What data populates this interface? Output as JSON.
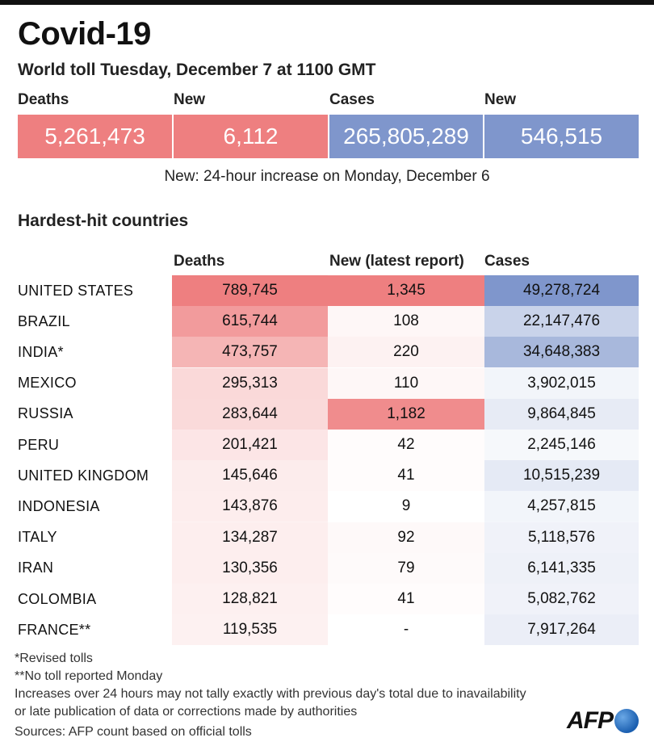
{
  "title": "Covid-19",
  "subtitle": "World toll Tuesday, December 7 at 1100 GMT",
  "summary": {
    "deaths_label": "Deaths",
    "deaths_value": "5,261,473",
    "new_deaths_label": "New",
    "new_deaths_value": "6,112",
    "cases_label": "Cases",
    "cases_value": "265,805,289",
    "new_cases_label": "New",
    "new_cases_value": "546,515"
  },
  "note": "New: 24-hour increase on Monday, December 6",
  "section_title": "Hardest-hit countries",
  "table": {
    "headers": {
      "deaths": "Deaths",
      "new": "New (latest report)",
      "cases": "Cases"
    },
    "rows": [
      {
        "country": "UNITED STATES",
        "deaths": "789,745",
        "new": "1,345",
        "cases": "49,278,724",
        "deaths_shade": 1.0,
        "new_shade": 1.0,
        "cases_shade": 1.0
      },
      {
        "country": "BRAZIL",
        "deaths": "615,744",
        "new": "108",
        "cases": "22,147,476",
        "deaths_shade": 0.78,
        "new_shade": 0.06,
        "cases_shade": 0.42
      },
      {
        "country": "INDIA*",
        "deaths": "473,757",
        "new": "220",
        "cases": "34,648,383",
        "deaths_shade": 0.58,
        "new_shade": 0.1,
        "cases_shade": 0.68
      },
      {
        "country": "MEXICO",
        "deaths": "295,313",
        "new": "110",
        "cases": "3,902,015",
        "deaths_shade": 0.3,
        "new_shade": 0.06,
        "cases_shade": 0.1
      },
      {
        "country": "RUSSIA",
        "deaths": "283,644",
        "new": "1,182",
        "cases": "9,864,845",
        "deaths_shade": 0.29,
        "new_shade": 0.9,
        "cases_shade": 0.19
      },
      {
        "country": "PERU",
        "deaths": "201,421",
        "new": "42",
        "cases": "2,245,146",
        "deaths_shade": 0.2,
        "new_shade": 0.02,
        "cases_shade": 0.07
      },
      {
        "country": "UNITED KINGDOM",
        "deaths": "145,646",
        "new": "41",
        "cases": "10,515,239",
        "deaths_shade": 0.15,
        "new_shade": 0.02,
        "cases_shade": 0.2
      },
      {
        "country": "INDONESIA",
        "deaths": "143,876",
        "new": "9",
        "cases": "4,257,815",
        "deaths_shade": 0.14,
        "new_shade": 0.0,
        "cases_shade": 0.1
      },
      {
        "country": "ITALY",
        "deaths": "134,287",
        "new": "92",
        "cases": "5,118,576",
        "deaths_shade": 0.13,
        "new_shade": 0.05,
        "cases_shade": 0.12
      },
      {
        "country": "IRAN",
        "deaths": "130,356",
        "new": "79",
        "cases": "6,141,335",
        "deaths_shade": 0.13,
        "new_shade": 0.04,
        "cases_shade": 0.13
      },
      {
        "country": "COLOMBIA",
        "deaths": "128,821",
        "new": "41",
        "cases": "5,082,762",
        "deaths_shade": 0.12,
        "new_shade": 0.02,
        "cases_shade": 0.12
      },
      {
        "country": "FRANCE**",
        "deaths": "119,535",
        "new": "-",
        "cases": "7,917,264",
        "deaths_shade": 0.11,
        "new_shade": 0.0,
        "cases_shade": 0.16
      }
    ]
  },
  "footnotes": [
    "*Revised tolls",
    "**No toll reported Monday",
    "Increases over 24 hours may not tally exactly with previous day's total due to inavailability",
    "or late publication of data or corrections made by authorities",
    "Sources: AFP count based on official tolls"
  ],
  "logo_text": "AFP",
  "colors": {
    "red": "#ee7f80",
    "blue": "#7f96cc",
    "red_light": "#fdf0f0",
    "blue_light": "#f1f3fa"
  }
}
